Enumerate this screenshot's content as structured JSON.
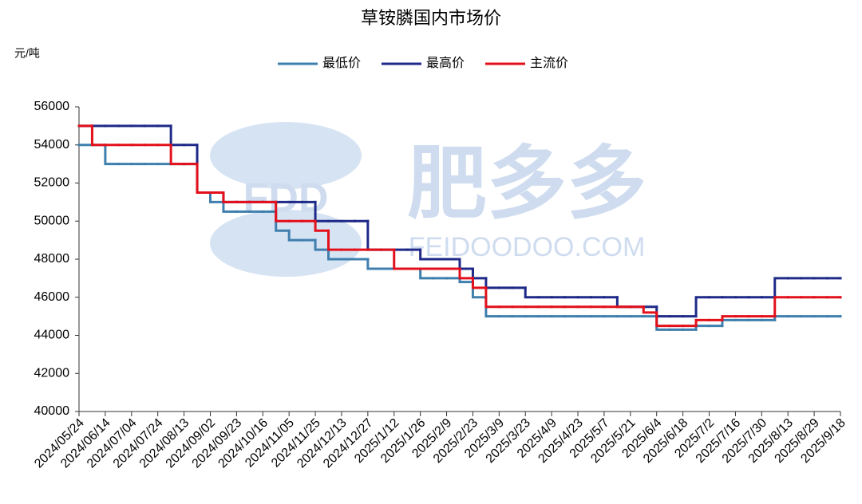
{
  "chart_data": {
    "type": "step-line",
    "title": "草铵膦国内市场价",
    "y_label": "元/吨",
    "watermark": [
      "FDD",
      "肥多多",
      "FEIDOODOO.COM"
    ],
    "categories": [
      "2024/05/24",
      null,
      "2024/06/14",
      null,
      "2024/07/04",
      null,
      "2024/07/24",
      null,
      "2024/08/13",
      null,
      "2024/09/02",
      null,
      "2024/09/23",
      null,
      "2024/10/16",
      null,
      "2024/11/05",
      null,
      "2024/11/25",
      null,
      "2024/12/13",
      null,
      "2024/12/27",
      null,
      "2025/1/12",
      null,
      "2025/1/26",
      null,
      "2025/2/9",
      null,
      "2025/2/23",
      null,
      "2025/3/9",
      null,
      "2025/3/23",
      null,
      "2025/4/9",
      null,
      "2025/4/23",
      null,
      "2025/5/7",
      null,
      "2025/5/21",
      null,
      "2025/6/4",
      null,
      "2025/6/18",
      null,
      "2025/7/2",
      null,
      "2025/7/16",
      null,
      "2025/7/30",
      null,
      "2025/8/13",
      null,
      "2025/8/29",
      null,
      "2025/9/18"
    ],
    "series": [
      {
        "name": "最低价",
        "color": "#3f7fae",
        "values": [
          54000,
          54000,
          53000,
          53000,
          53000,
          53000,
          53000,
          53000,
          53000,
          51500,
          51000,
          50500,
          50500,
          50500,
          50500,
          49500,
          49000,
          49000,
          48500,
          48000,
          48000,
          48000,
          47500,
          47500,
          47500,
          47500,
          47000,
          47000,
          47000,
          46800,
          46000,
          45000,
          45000,
          45000,
          45000,
          45000,
          45000,
          45000,
          45000,
          45000,
          45000,
          45000,
          45000,
          45000,
          44300,
          44300,
          44300,
          44500,
          44500,
          44800,
          44800,
          44800,
          44800,
          45000,
          45000,
          45000,
          45000,
          45000,
          45000
        ]
      },
      {
        "name": "最高价",
        "color": "#1f2a88",
        "values": [
          55000,
          55000,
          55000,
          55000,
          55000,
          55000,
          55000,
          54000,
          54000,
          51500,
          51500,
          51000,
          51000,
          51000,
          51000,
          51000,
          51000,
          51000,
          50000,
          50000,
          50000,
          50000,
          48500,
          48500,
          48500,
          48500,
          48000,
          48000,
          48000,
          47500,
          47000,
          46500,
          46500,
          46500,
          46000,
          46000,
          46000,
          46000,
          46000,
          46000,
          46000,
          45500,
          45500,
          45500,
          45000,
          45000,
          45000,
          46000,
          46000,
          46000,
          46000,
          46000,
          46000,
          47000,
          47000,
          47000,
          47000,
          47000,
          47000
        ]
      },
      {
        "name": "主流价",
        "color": "#e3101b",
        "values": [
          55000,
          54000,
          54000,
          54000,
          54000,
          54000,
          54000,
          53000,
          53000,
          51500,
          51500,
          51000,
          51000,
          51000,
          51000,
          50000,
          50000,
          50000,
          49500,
          48500,
          48500,
          48500,
          48500,
          48500,
          47500,
          47500,
          47500,
          47500,
          47500,
          47000,
          46500,
          45500,
          45500,
          45500,
          45500,
          45500,
          45500,
          45500,
          45500,
          45500,
          45500,
          45500,
          45500,
          45200,
          44500,
          44500,
          44500,
          44800,
          44800,
          45000,
          45000,
          45000,
          45000,
          46000,
          46000,
          46000,
          46000,
          46000,
          46000
        ]
      }
    ],
    "ylim": [
      40000,
      56000
    ],
    "yticks": [
      40000,
      42000,
      44000,
      46000,
      48000,
      50000,
      52000,
      54000,
      56000
    ],
    "grid": false,
    "legend": "top"
  }
}
